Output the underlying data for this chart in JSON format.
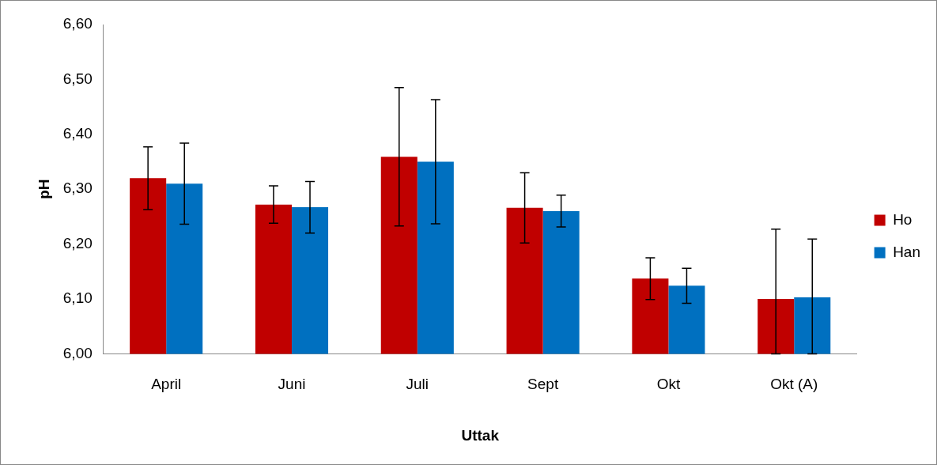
{
  "chart_data": {
    "type": "bar",
    "xlabel": "Uttak",
    "ylabel": "pH",
    "categories": [
      "April",
      "Juni",
      "Juli",
      "Sept",
      "Okt",
      "Okt (A)"
    ],
    "series": [
      {
        "name": "Ho",
        "color": "#c00000",
        "values": [
          6.32,
          6.272,
          6.359,
          6.266,
          6.137,
          6.1
        ],
        "errors": [
          0.057,
          0.034,
          0.126,
          0.064,
          0.038,
          [
            6.0,
            6.227
          ]
        ]
      },
      {
        "name": "Han",
        "color": "#0070c0",
        "values": [
          6.31,
          6.267,
          6.35,
          6.26,
          6.124,
          6.103
        ],
        "errors": [
          0.074,
          0.047,
          0.113,
          0.029,
          0.032,
          [
            6.0,
            6.209
          ]
        ]
      }
    ],
    "ylim": [
      6.0,
      6.6
    ],
    "yticks": [
      {
        "value": 6.0,
        "label": "6,00"
      },
      {
        "value": 6.1,
        "label": "6,10"
      },
      {
        "value": 6.2,
        "label": "6,20"
      },
      {
        "value": 6.3,
        "label": "6,30"
      },
      {
        "value": 6.4,
        "label": "6,40"
      },
      {
        "value": 6.5,
        "label": "6,50"
      },
      {
        "value": 6.6,
        "label": "6,60"
      }
    ],
    "grid": false,
    "legend": "right"
  }
}
